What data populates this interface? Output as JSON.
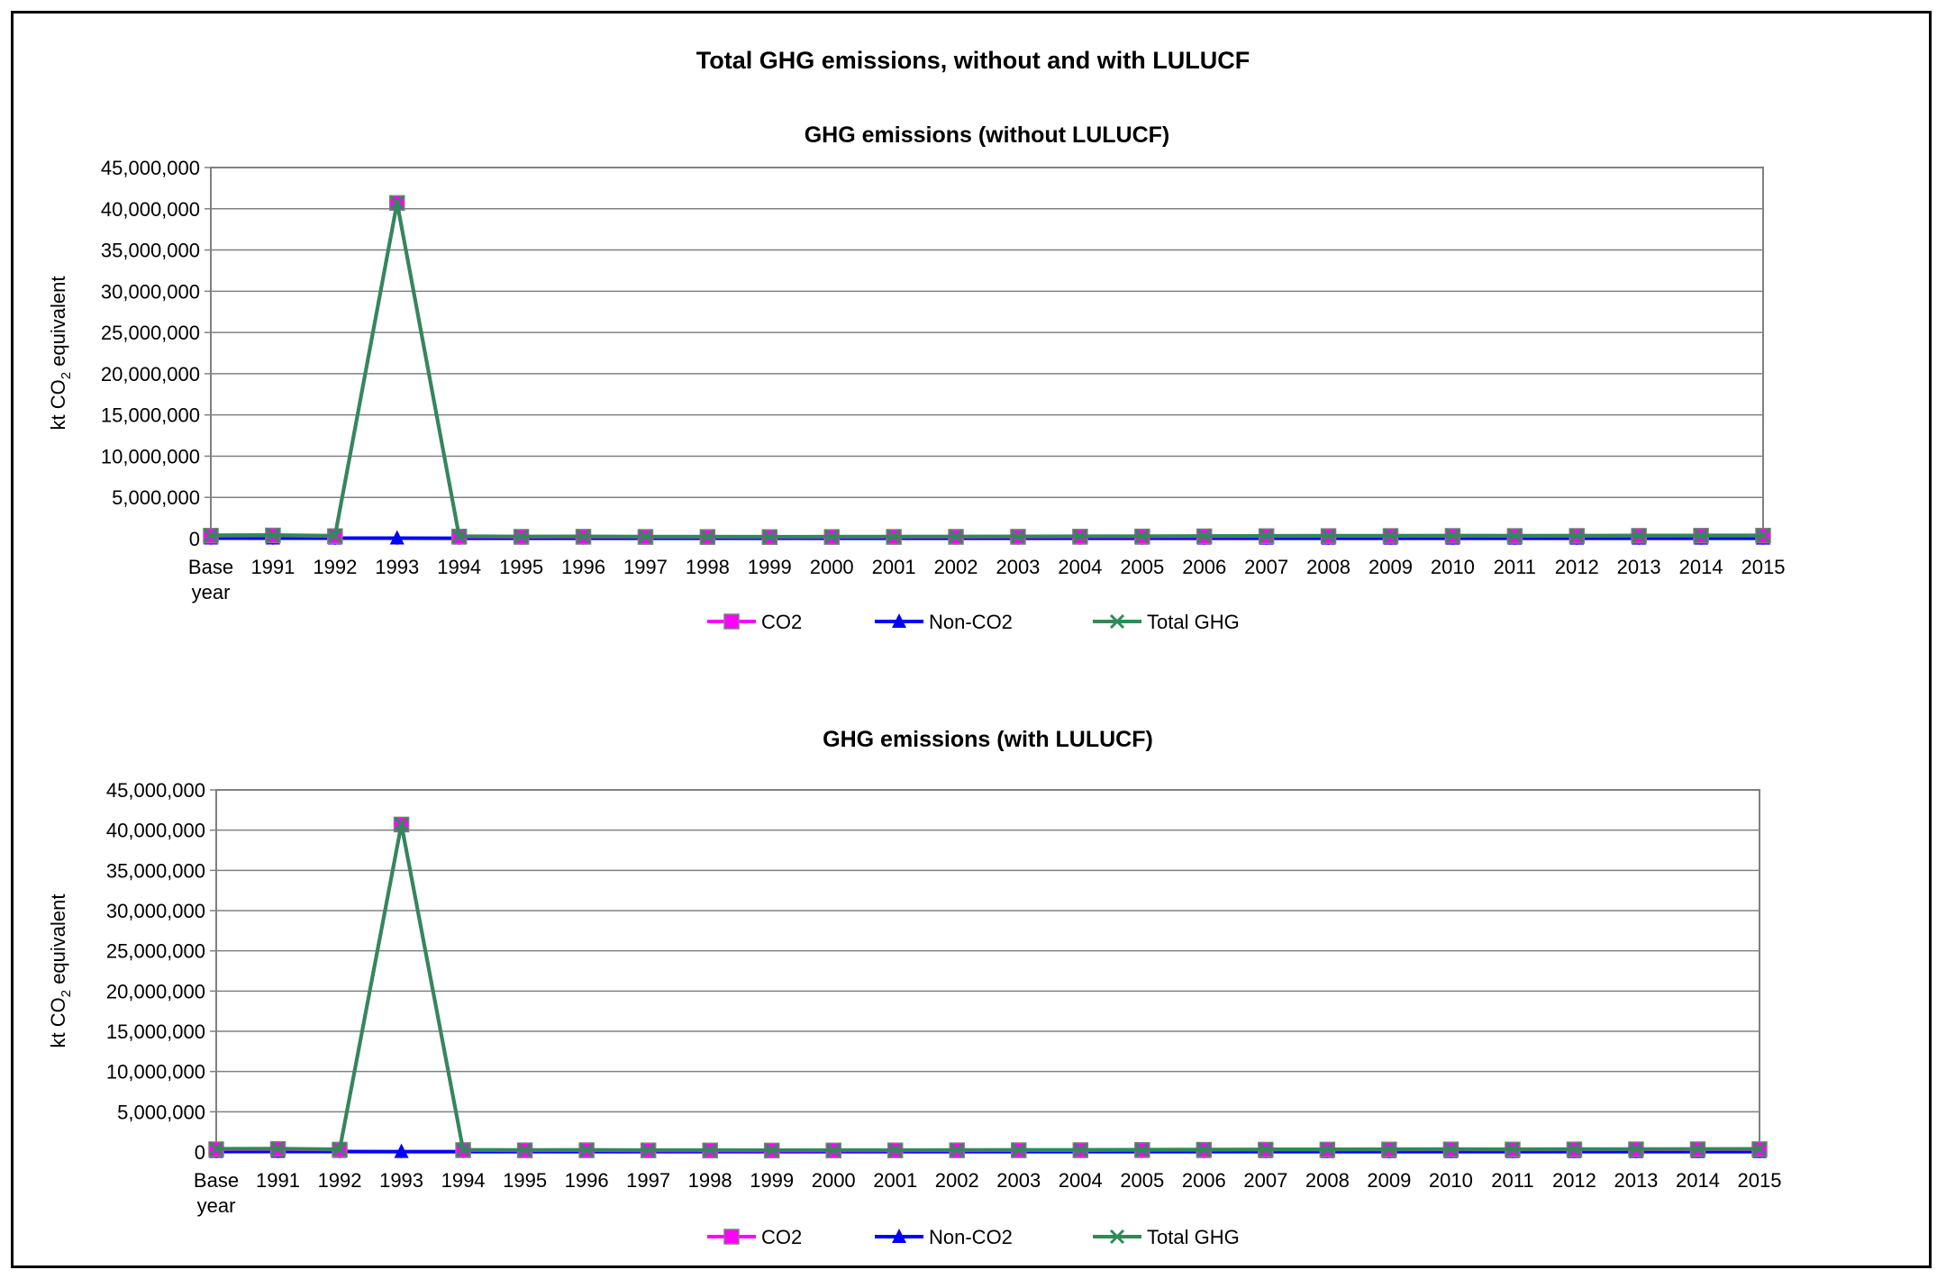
{
  "title": "Total GHG emissions, without and with LULUCF",
  "colors": {
    "co2": "#ff00ff",
    "nonco2": "#0000ff",
    "total": "#2e8b57",
    "grid": "#808080"
  },
  "chart_data": [
    {
      "type": "line",
      "title": "GHG emissions (without LULUCF)",
      "ylabel": "kt CO2 equivalent",
      "ylabel_parts": [
        "kt CO",
        "2",
        " equivalent"
      ],
      "ylim": [
        0,
        45000000
      ],
      "yticks": [
        "0",
        "5,000,000",
        "10,000,000",
        "15,000,000",
        "20,000,000",
        "25,000,000",
        "30,000,000",
        "35,000,000",
        "40,000,000",
        "45,000,000"
      ],
      "ytick_values": [
        0,
        5000000,
        10000000,
        15000000,
        20000000,
        25000000,
        30000000,
        35000000,
        40000000,
        45000000
      ],
      "grid": true,
      "legend": "bottom",
      "categories": [
        "Base year",
        "1991",
        "1992",
        "1993",
        "1994",
        "1995",
        "1996",
        "1997",
        "1998",
        "1999",
        "2000",
        "2001",
        "2002",
        "2003",
        "2004",
        "2005",
        "2006",
        "2007",
        "2008",
        "2009",
        "2010",
        "2011",
        "2012",
        "2013",
        "2014",
        "2015"
      ],
      "series": [
        {
          "name": "CO2",
          "values": [
            350000,
            380000,
            300000,
            40700000,
            250000,
            220000,
            230000,
            210000,
            200000,
            190000,
            200000,
            210000,
            220000,
            230000,
            240000,
            260000,
            280000,
            300000,
            310000,
            320000,
            330000,
            320000,
            330000,
            340000,
            350000,
            360000
          ]
        },
        {
          "name": "Non-CO2",
          "values": [
            60000,
            55000,
            50000,
            48000,
            45000,
            44000,
            43000,
            42000,
            42000,
            41000,
            41000,
            41000,
            40000,
            40000,
            40000,
            40000,
            39000,
            39000,
            39000,
            38000,
            38000,
            38000,
            37000,
            37000,
            37000,
            37000
          ]
        },
        {
          "name": "Total GHG",
          "values": [
            410000,
            435000,
            350000,
            40750000,
            295000,
            264000,
            273000,
            252000,
            242000,
            231000,
            241000,
            251000,
            260000,
            270000,
            280000,
            300000,
            319000,
            339000,
            349000,
            358000,
            368000,
            358000,
            367000,
            377000,
            387000,
            397000
          ]
        }
      ]
    },
    {
      "type": "line",
      "title": "GHG emissions (with LULUCF)",
      "ylabel": "kt CO2 equivalent",
      "ylabel_parts": [
        "kt CO",
        "2",
        " equivalent"
      ],
      "ylim": [
        0,
        45000000
      ],
      "yticks": [
        "0",
        "5,000,000",
        "10,000,000",
        "15,000,000",
        "20,000,000",
        "25,000,000",
        "30,000,000",
        "35,000,000",
        "40,000,000",
        "45,000,000"
      ],
      "ytick_values": [
        0,
        5000000,
        10000000,
        15000000,
        20000000,
        25000000,
        30000000,
        35000000,
        40000000,
        45000000
      ],
      "grid": true,
      "legend": "bottom",
      "categories": [
        "Base year",
        "1991",
        "1992",
        "1993",
        "1994",
        "1995",
        "1996",
        "1997",
        "1998",
        "1999",
        "2000",
        "2001",
        "2002",
        "2003",
        "2004",
        "2005",
        "2006",
        "2007",
        "2008",
        "2009",
        "2010",
        "2011",
        "2012",
        "2013",
        "2014",
        "2015"
      ],
      "series": [
        {
          "name": "CO2",
          "values": [
            340000,
            370000,
            290000,
            40700000,
            240000,
            210000,
            220000,
            200000,
            190000,
            180000,
            190000,
            200000,
            210000,
            220000,
            230000,
            250000,
            270000,
            290000,
            300000,
            310000,
            320000,
            310000,
            320000,
            330000,
            340000,
            350000
          ]
        },
        {
          "name": "Non-CO2",
          "values": [
            60000,
            55000,
            50000,
            48000,
            45000,
            44000,
            43000,
            42000,
            42000,
            41000,
            41000,
            41000,
            40000,
            40000,
            40000,
            40000,
            39000,
            39000,
            39000,
            38000,
            38000,
            38000,
            37000,
            37000,
            37000,
            37000
          ]
        },
        {
          "name": "Total GHG",
          "values": [
            400000,
            425000,
            340000,
            40748000,
            285000,
            254000,
            263000,
            242000,
            232000,
            221000,
            231000,
            241000,
            250000,
            260000,
            270000,
            290000,
            309000,
            329000,
            339000,
            348000,
            358000,
            348000,
            357000,
            367000,
            377000,
            387000
          ]
        }
      ]
    }
  ]
}
